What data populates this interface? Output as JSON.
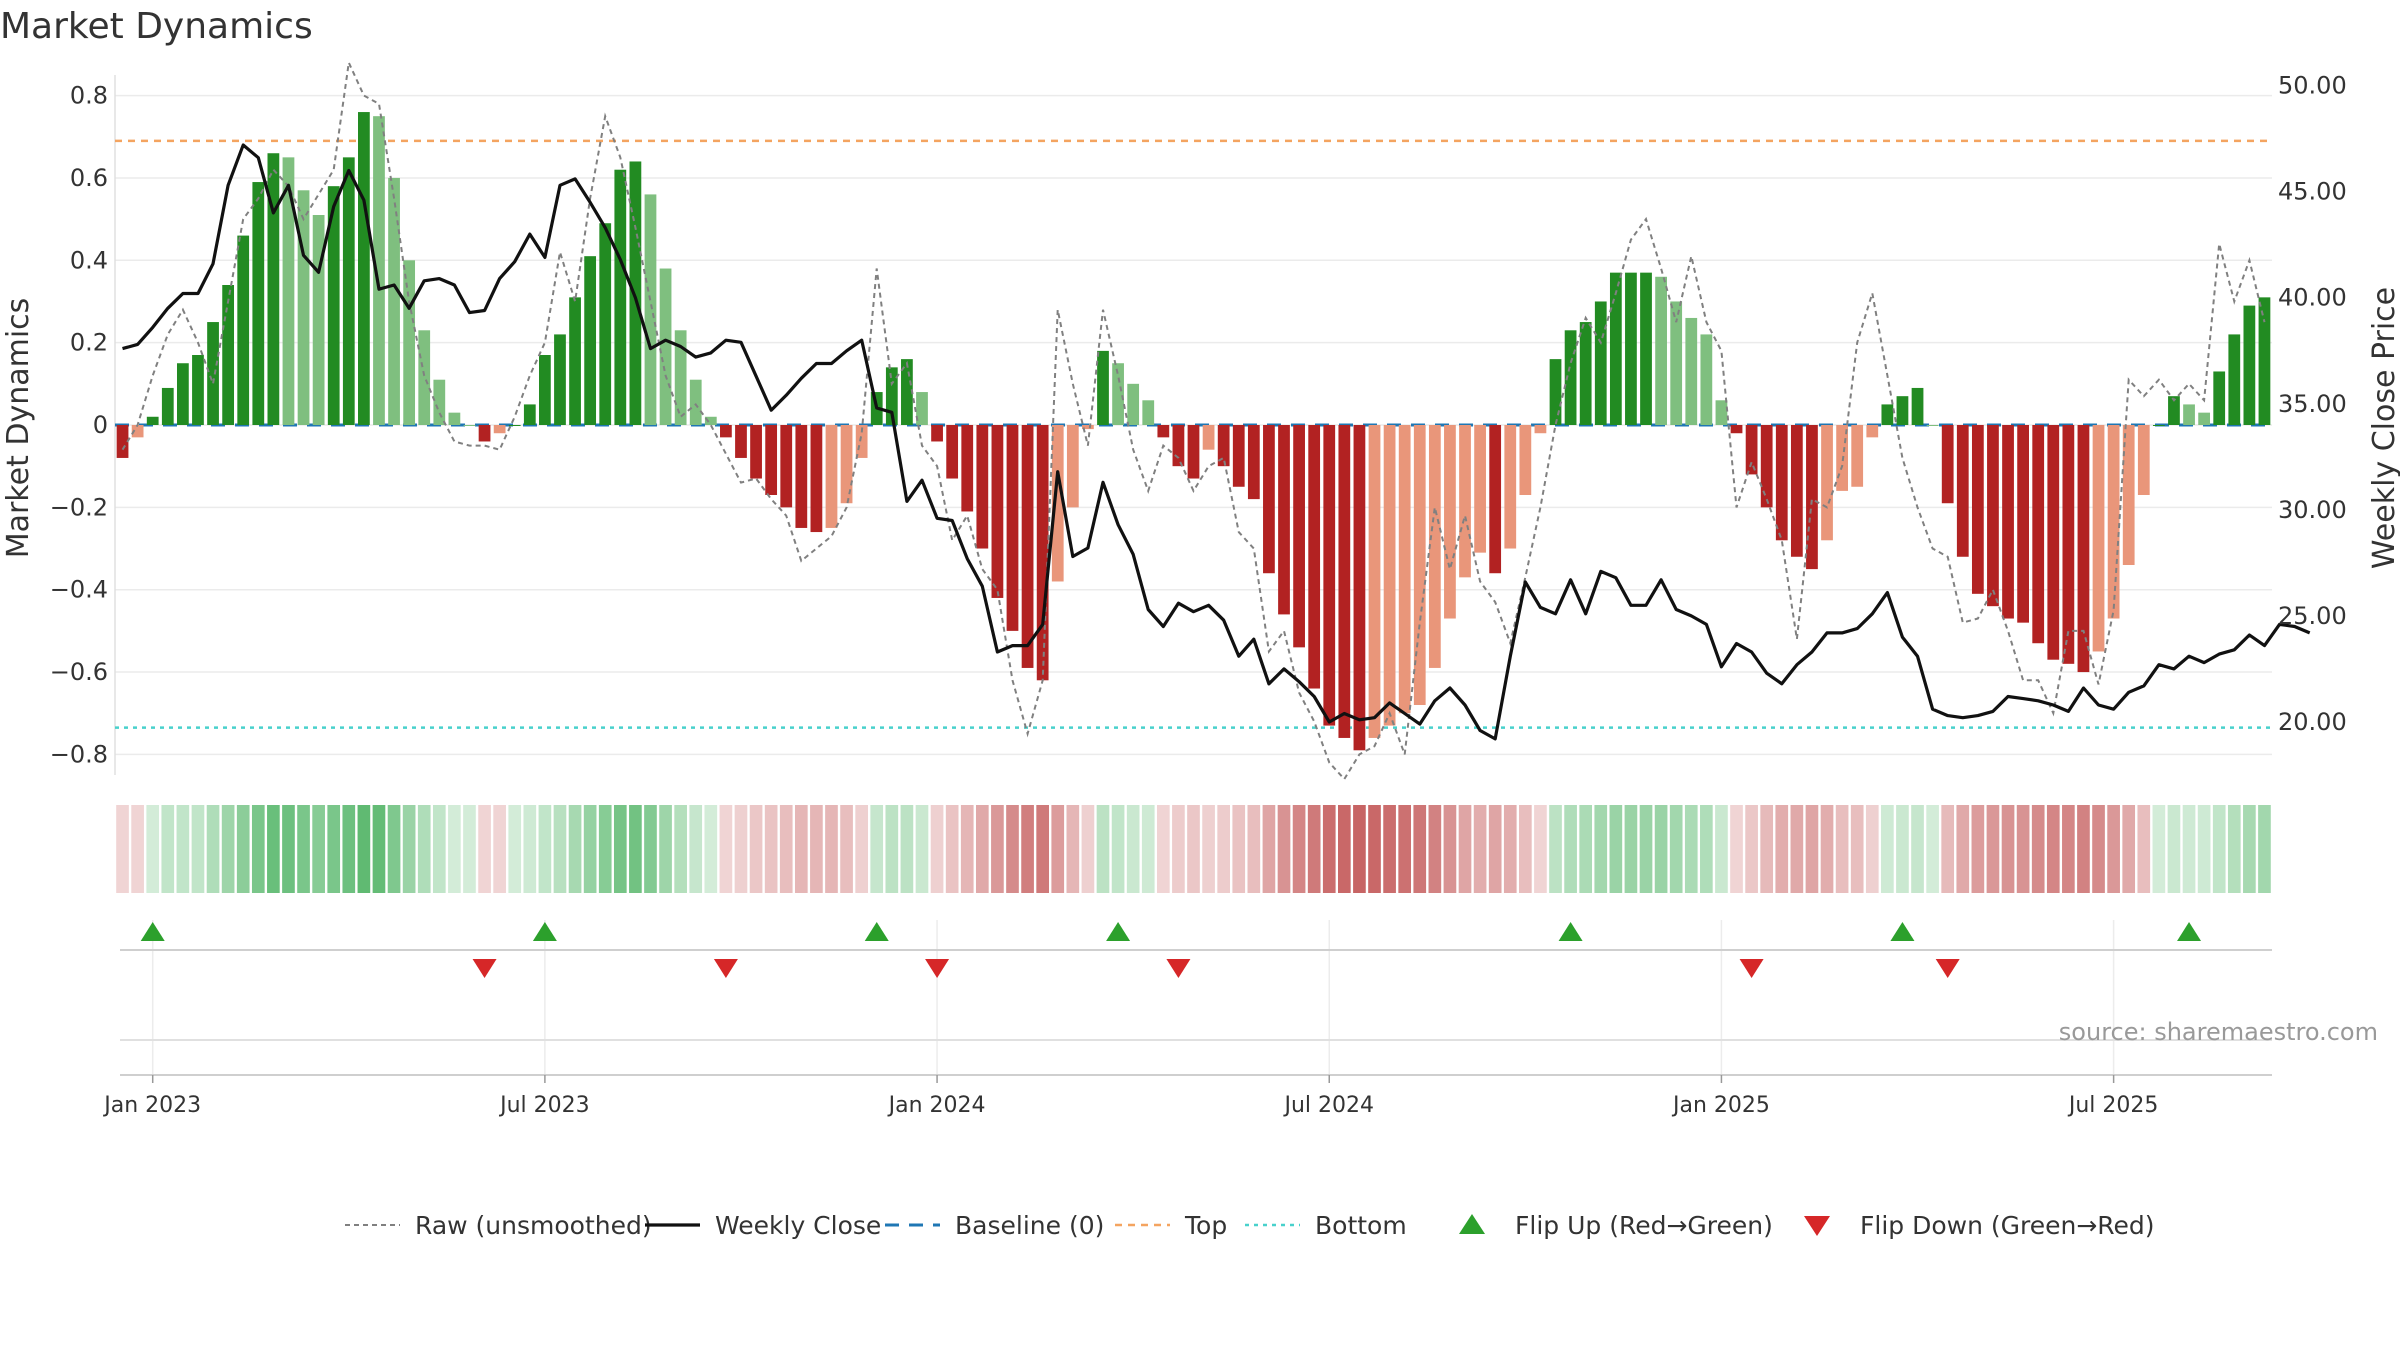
{
  "chart_data": {
    "type": "bar",
    "title": "Market Dynamics",
    "ylabel": "Market Dynamics",
    "y2label": "Weekly Close Price",
    "ylim": [
      -0.85,
      0.85
    ],
    "y2lim": [
      17.5,
      50.5
    ],
    "yticks": [
      "−0.8",
      "−0.6",
      "−0.4",
      "−0.2",
      "0",
      "0.2",
      "0.4",
      "0.6",
      "0.8"
    ],
    "y2ticks": [
      "20.00",
      "25.00",
      "30.00",
      "35.00",
      "40.00",
      "45.00",
      "50.00"
    ],
    "xticks": [
      {
        "label": "Jan 2023",
        "week": 2
      },
      {
        "label": "Jul 2023",
        "week": 28
      },
      {
        "label": "Jan 2024",
        "week": 54
      },
      {
        "label": "Jul 2024",
        "week": 80
      },
      {
        "label": "Jan 2025",
        "week": 106
      },
      {
        "label": "Jul 2025",
        "week": 132
      }
    ],
    "top_line": 0.69,
    "bottom_line": -0.735,
    "baseline": 0,
    "series": [
      {
        "name": "Market Dynamics",
        "values": [
          -0.08,
          -0.03,
          0.02,
          0.09,
          0.15,
          0.17,
          0.25,
          0.34,
          0.46,
          0.59,
          0.66,
          0.65,
          0.57,
          0.51,
          0.58,
          0.65,
          0.76,
          0.75,
          0.6,
          0.4,
          0.23,
          0.11,
          0.03,
          0.0,
          -0.04,
          -0.02,
          0.0,
          0.05,
          0.17,
          0.22,
          0.31,
          0.41,
          0.49,
          0.62,
          0.64,
          0.56,
          0.38,
          0.23,
          0.11,
          0.02,
          -0.03,
          -0.08,
          -0.13,
          -0.17,
          -0.2,
          -0.25,
          -0.26,
          -0.25,
          -0.19,
          -0.08,
          0.08,
          0.14,
          0.16,
          0.08,
          -0.04,
          -0.13,
          -0.21,
          -0.3,
          -0.42,
          -0.5,
          -0.59,
          -0.62,
          -0.38,
          -0.2,
          -0.01,
          0.18,
          0.15,
          0.1,
          0.06,
          -0.03,
          -0.1,
          -0.13,
          -0.06,
          -0.1,
          -0.15,
          -0.18,
          -0.36,
          -0.46,
          -0.54,
          -0.64,
          -0.73,
          -0.76,
          -0.79,
          -0.76,
          -0.73,
          -0.7,
          -0.68,
          -0.59,
          -0.47,
          -0.37,
          -0.31,
          -0.36,
          -0.3,
          -0.17,
          -0.02,
          0.16,
          0.23,
          0.25,
          0.3,
          0.37,
          0.37,
          0.37,
          0.36,
          0.3,
          0.26,
          0.22,
          0.06,
          -0.02,
          -0.12,
          -0.2,
          -0.28,
          -0.32,
          -0.35,
          -0.28,
          -0.16,
          -0.15,
          -0.03,
          0.05,
          0.07,
          0.09,
          0.0,
          -0.19,
          -0.32,
          -0.41,
          -0.44,
          -0.47,
          -0.48,
          -0.53,
          -0.57,
          -0.58,
          -0.6,
          -0.55,
          -0.47,
          -0.34,
          -0.17,
          0.0,
          0.07,
          0.05,
          0.03,
          0.13,
          0.22,
          0.29,
          0.31
        ]
      },
      {
        "name": "Raw (unsmoothed)",
        "values": [
          -0.06,
          0.0,
          0.12,
          0.22,
          0.28,
          0.2,
          0.1,
          0.3,
          0.5,
          0.55,
          0.62,
          0.58,
          0.5,
          0.56,
          0.62,
          0.88,
          0.8,
          0.78,
          0.55,
          0.3,
          0.12,
          0.03,
          -0.04,
          -0.05,
          -0.05,
          -0.06,
          0.02,
          0.12,
          0.2,
          0.42,
          0.3,
          0.55,
          0.75,
          0.65,
          0.48,
          0.3,
          0.12,
          0.02,
          0.05,
          0.0,
          -0.07,
          -0.14,
          -0.13,
          -0.18,
          -0.22,
          -0.33,
          -0.3,
          -0.27,
          -0.2,
          -0.02,
          0.38,
          0.1,
          0.15,
          -0.05,
          -0.1,
          -0.28,
          -0.22,
          -0.35,
          -0.4,
          -0.62,
          -0.75,
          -0.62,
          0.28,
          0.1,
          -0.05,
          0.28,
          0.12,
          -0.06,
          -0.16,
          -0.05,
          -0.08,
          -0.16,
          -0.1,
          -0.08,
          -0.26,
          -0.3,
          -0.55,
          -0.5,
          -0.65,
          -0.72,
          -0.82,
          -0.86,
          -0.8,
          -0.78,
          -0.7,
          -0.8,
          -0.48,
          -0.2,
          -0.35,
          -0.22,
          -0.38,
          -0.43,
          -0.53,
          -0.37,
          -0.2,
          0.0,
          0.15,
          0.26,
          0.2,
          0.32,
          0.45,
          0.5,
          0.38,
          0.25,
          0.41,
          0.25,
          0.18,
          -0.2,
          -0.09,
          -0.18,
          -0.28,
          -0.52,
          -0.18,
          -0.2,
          -0.1,
          0.2,
          0.32,
          0.12,
          -0.08,
          -0.2,
          -0.3,
          -0.32,
          -0.48,
          -0.47,
          -0.4,
          -0.5,
          -0.62,
          -0.62,
          -0.7,
          -0.5,
          -0.5,
          -0.63,
          -0.45,
          0.11,
          0.07,
          0.11,
          0.06,
          0.1,
          0.06,
          0.44,
          0.3,
          0.4,
          0.25
        ]
      },
      {
        "name": "Weekly Close",
        "values": [
          37.6,
          37.8,
          38.6,
          39.5,
          40.2,
          40.2,
          41.6,
          45.3,
          47.2,
          46.6,
          44.0,
          45.3,
          42.0,
          41.2,
          44.3,
          46.0,
          44.6,
          40.4,
          40.6,
          39.5,
          40.8,
          40.9,
          40.6,
          39.3,
          39.4,
          40.9,
          41.7,
          43.0,
          41.9,
          45.3,
          45.6,
          44.5,
          43.3,
          41.8,
          40.0,
          37.6,
          38.0,
          37.7,
          37.2,
          37.4,
          38.0,
          37.9,
          36.3,
          34.7,
          35.4,
          36.2,
          36.9,
          36.9,
          37.5,
          38.0,
          34.8,
          34.6,
          30.4,
          31.4,
          29.6,
          29.5,
          27.7,
          26.4,
          23.3,
          23.6,
          23.6,
          24.6,
          31.8,
          27.8,
          28.2,
          31.3,
          29.3,
          27.9,
          25.3,
          24.5,
          25.6,
          25.2,
          25.5,
          24.8,
          23.1,
          23.9,
          21.8,
          22.5,
          21.9,
          21.2,
          20.0,
          20.4,
          20.1,
          20.2,
          20.9,
          20.4,
          19.9,
          21.0,
          21.6,
          20.8,
          19.6,
          19.2,
          23.1,
          26.6,
          25.4,
          25.1,
          26.7,
          25.1,
          27.1,
          26.8,
          25.5,
          25.5,
          26.7,
          25.3,
          25.0,
          24.6,
          22.6,
          23.7,
          23.3,
          22.3,
          21.8,
          22.7,
          23.3,
          24.2,
          24.2,
          24.4,
          25.1,
          26.1,
          24.0,
          23.1,
          20.6,
          20.3,
          20.2,
          20.3,
          20.5,
          21.2,
          21.1,
          21.0,
          20.8,
          20.5,
          21.6,
          20.8,
          20.6,
          21.4,
          21.7,
          22.7,
          22.5,
          23.1,
          22.8,
          23.2,
          23.4,
          24.1,
          23.6,
          24.6,
          24.5,
          24.2
        ]
      }
    ],
    "regime_intensity": [
      0.2,
      0.2,
      0.2,
      0.28,
      0.28,
      0.28,
      0.36,
      0.44,
      0.52,
      0.6,
      0.68,
      0.66,
      0.6,
      0.54,
      0.6,
      0.66,
      0.72,
      0.7,
      0.58,
      0.46,
      0.36,
      0.28,
      0.2,
      0.2,
      0.2,
      0.2,
      0.2,
      0.22,
      0.28,
      0.32,
      0.4,
      0.48,
      0.54,
      0.62,
      0.64,
      0.56,
      0.44,
      0.34,
      0.26,
      0.2,
      0.2,
      0.22,
      0.26,
      0.28,
      0.3,
      0.34,
      0.34,
      0.34,
      0.3,
      0.22,
      0.26,
      0.3,
      0.3,
      0.24,
      0.22,
      0.28,
      0.34,
      0.4,
      0.48,
      0.54,
      0.6,
      0.62,
      0.46,
      0.34,
      0.22,
      0.3,
      0.28,
      0.24,
      0.22,
      0.2,
      0.24,
      0.26,
      0.22,
      0.24,
      0.28,
      0.3,
      0.42,
      0.5,
      0.56,
      0.62,
      0.68,
      0.7,
      0.72,
      0.7,
      0.68,
      0.66,
      0.64,
      0.58,
      0.5,
      0.42,
      0.38,
      0.42,
      0.38,
      0.3,
      0.2,
      0.3,
      0.36,
      0.38,
      0.42,
      0.46,
      0.46,
      0.46,
      0.46,
      0.42,
      0.38,
      0.36,
      0.24,
      0.2,
      0.26,
      0.32,
      0.38,
      0.4,
      0.42,
      0.38,
      0.3,
      0.3,
      0.22,
      0.22,
      0.24,
      0.26,
      0.2,
      0.32,
      0.4,
      0.46,
      0.48,
      0.5,
      0.5,
      0.54,
      0.56,
      0.56,
      0.58,
      0.54,
      0.48,
      0.4,
      0.3,
      0.2,
      0.24,
      0.22,
      0.22,
      0.28,
      0.34,
      0.4,
      0.42
    ],
    "flips_up": [
      2,
      28,
      50,
      66,
      96,
      118,
      137
    ],
    "flips_down": [
      24,
      40,
      54,
      70,
      108,
      121
    ],
    "colors": {
      "strong_up": "#228b22",
      "weak_up": "#7fbf7f",
      "strong_down": "#b22222",
      "weak_down": "#e9967a",
      "close": "#111111",
      "raw": "#808080",
      "baseline": "#1f77b4",
      "top": "#f4a460",
      "bottom": "#48d1cc",
      "flip_up": "#2ca02c",
      "flip_down": "#d62728"
    },
    "legend": [
      {
        "label": "Raw (unsmoothed)",
        "style": "raw"
      },
      {
        "label": "Weekly Close",
        "style": "close"
      },
      {
        "label": "Baseline (0)",
        "style": "baseline"
      },
      {
        "label": "Top",
        "style": "top"
      },
      {
        "label": "Bottom",
        "style": "bottom"
      },
      {
        "label": "Flip Up (Red→Green)",
        "style": "flip_up"
      },
      {
        "label": "Flip Down (Green→Red)",
        "style": "flip_down"
      }
    ],
    "source": "source: sharemaestro.com"
  }
}
